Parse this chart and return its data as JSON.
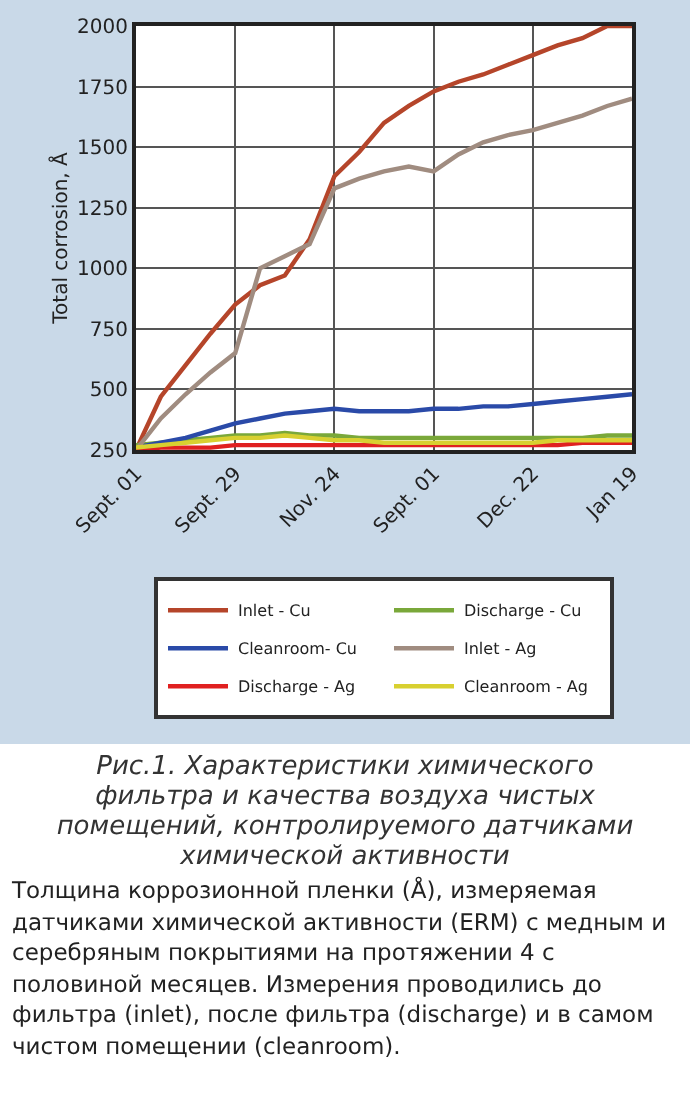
{
  "chart_data": {
    "type": "line",
    "ylabel": "Total corrosion, Å",
    "categories": [
      "Sept. 01",
      null,
      null,
      null,
      "Sept. 29",
      null,
      null,
      null,
      "Nov. 24",
      null,
      null,
      null,
      "Sept. 01",
      null,
      null,
      null,
      "Dec. 22",
      null,
      null,
      null,
      "Jan 19"
    ],
    "ylim": [
      250,
      2000
    ],
    "yticks": [
      250,
      500,
      750,
      1000,
      1250,
      1500,
      1750,
      2000
    ],
    "grid": true,
    "legend": "bottom",
    "line_style": "solid",
    "marker": "none",
    "series": [
      {
        "name": "Inlet - Cu",
        "color": "#b5452a",
        "values": [
          250,
          470,
          600,
          730,
          850,
          930,
          970,
          1120,
          1380,
          1480,
          1600,
          1670,
          1730,
          1770,
          1800,
          1840,
          1880,
          1920,
          1950,
          2000,
          2000
        ]
      },
      {
        "name": "Discharge - Cu",
        "color": "#7aa83a",
        "values": [
          270,
          280,
          290,
          300,
          310,
          310,
          320,
          310,
          310,
          300,
          300,
          300,
          300,
          300,
          300,
          300,
          300,
          300,
          300,
          310,
          310
        ]
      },
      {
        "name": "Cleanroom- Cu",
        "color": "#2a4aa8",
        "values": [
          260,
          280,
          300,
          330,
          360,
          380,
          400,
          410,
          420,
          410,
          410,
          410,
          420,
          420,
          430,
          430,
          440,
          450,
          460,
          470,
          480
        ]
      },
      {
        "name": "Inlet - Ag",
        "color": "#a08c80",
        "values": [
          250,
          380,
          480,
          570,
          650,
          1000,
          1050,
          1100,
          1330,
          1370,
          1400,
          1420,
          1400,
          1470,
          1520,
          1550,
          1570,
          1600,
          1630,
          1670,
          1700
        ]
      },
      {
        "name": "Discharge - Ag",
        "color": "#e02020",
        "values": [
          250,
          260,
          260,
          260,
          270,
          270,
          270,
          270,
          270,
          270,
          270,
          270,
          270,
          270,
          270,
          270,
          270,
          270,
          280,
          280,
          280
        ]
      },
      {
        "name": "Cleanroom - Ag",
        "color": "#d8d030",
        "values": [
          260,
          270,
          280,
          290,
          300,
          300,
          310,
          300,
          290,
          290,
          280,
          280,
          280,
          280,
          280,
          280,
          280,
          290,
          290,
          290,
          290
        ]
      }
    ],
    "annotations": [
      "Рис.1. Характеристики химического фильтра и качества воздуха чистых помещений, контролируемого датчиками химической активности",
      "Толщина коррозионной пленки (Å), измеряемая датчиками химической активности (ERM) с медным и серебряным покрытиями на протяжении 4 с половиной месяцев. Измерения проводились до фильтра (inlet), после фильтра (discharge) и в самом чистом помещении (cleanroom)."
    ]
  }
}
